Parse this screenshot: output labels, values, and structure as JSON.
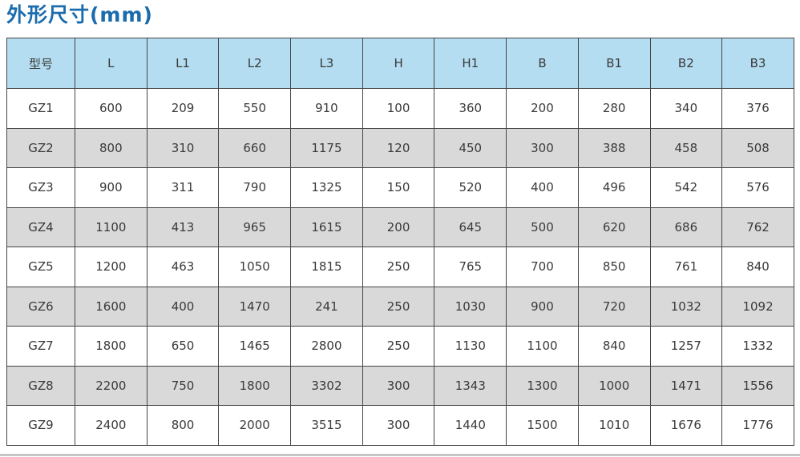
{
  "title": "外形尺寸(mm)",
  "colors": {
    "title_text": "#1b6cad",
    "header_bg": "#b4ddf1",
    "row_bg": "#ffffff",
    "row_alt_bg": "#d9d9d9",
    "border": "#454545",
    "cell_text": "#3a3a3a"
  },
  "chart_data": {
    "type": "table",
    "title": "外形尺寸(mm)",
    "columns": [
      "型号",
      "L",
      "L1",
      "L2",
      "L3",
      "H",
      "H1",
      "B",
      "B1",
      "B2",
      "B3"
    ],
    "rows": [
      [
        "GZ1",
        "600",
        "209",
        "550",
        "910",
        "100",
        "360",
        "200",
        "280",
        "340",
        "376"
      ],
      [
        "GZ2",
        "800",
        "310",
        "660",
        "1175",
        "120",
        "450",
        "300",
        "388",
        "458",
        "508"
      ],
      [
        "GZ3",
        "900",
        "311",
        "790",
        "1325",
        "150",
        "520",
        "400",
        "496",
        "542",
        "576"
      ],
      [
        "GZ4",
        "1100",
        "413",
        "965",
        "1615",
        "200",
        "645",
        "500",
        "620",
        "686",
        "762"
      ],
      [
        "GZ5",
        "1200",
        "463",
        "1050",
        "1815",
        "250",
        "765",
        "700",
        "850",
        "761",
        "840"
      ],
      [
        "GZ6",
        "1600",
        "400",
        "1470",
        "241",
        "250",
        "1030",
        "900",
        "720",
        "1032",
        "1092"
      ],
      [
        "GZ7",
        "1800",
        "650",
        "1465",
        "2800",
        "250",
        "1130",
        "1100",
        "840",
        "1257",
        "1332"
      ],
      [
        "GZ8",
        "2200",
        "750",
        "1800",
        "3302",
        "300",
        "1343",
        "1300",
        "1000",
        "1471",
        "1556"
      ],
      [
        "GZ9",
        "2400",
        "800",
        "2000",
        "3515",
        "300",
        "1440",
        "1500",
        "1010",
        "1676",
        "1776"
      ]
    ]
  }
}
